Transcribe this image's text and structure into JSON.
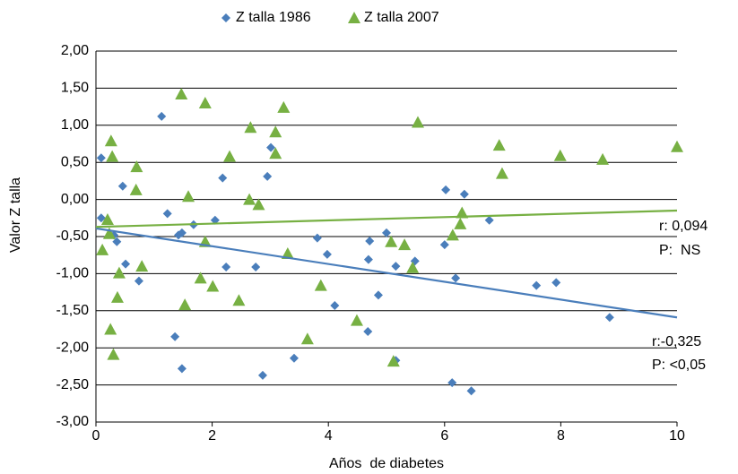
{
  "chart_data": {
    "type": "scatter",
    "x_label": "Años  de diabetes",
    "y_label": "Valor Z talla",
    "xlim": [
      0,
      10
    ],
    "xticks": [
      0,
      2,
      4,
      6,
      8,
      10
    ],
    "ylim": [
      -3,
      2
    ],
    "yticks": [
      {
        "value": -3,
        "label": "-3,00"
      },
      {
        "value": -2.5,
        "label": "-2,50"
      },
      {
        "value": -2,
        "label": "-2,00"
      },
      {
        "value": -1.5,
        "label": "-1,50"
      },
      {
        "value": -1,
        "label": "-1,00"
      },
      {
        "value": -0.5,
        "label": "-0,50"
      },
      {
        "value": 0,
        "label": "0,00"
      },
      {
        "value": 0.5,
        "label": "0,50"
      },
      {
        "value": 1,
        "label": "1,00"
      },
      {
        "value": 1.5,
        "label": "1,50"
      },
      {
        "value": 2,
        "label": "2,00"
      }
    ],
    "grid": true,
    "series": [
      {
        "name": "Z talla 1986",
        "color": "#4a7ebb",
        "marker": "diamond",
        "x": [
          0.09,
          0.09,
          0.31,
          0.36,
          0.46,
          0.51,
          0.74,
          1.13,
          1.23,
          1.36,
          1.42,
          1.48,
          1.48,
          1.68,
          2.05,
          2.18,
          2.24,
          2.75,
          2.87,
          2.95,
          3.01,
          3.41,
          3.81,
          3.98,
          4.11,
          4.68,
          4.69,
          4.71,
          4.86,
          5.0,
          5.16,
          5.16,
          5.49,
          6.02,
          6.0,
          6.13,
          6.19,
          6.34,
          6.46,
          6.77,
          7.58,
          7.92,
          8.84
        ],
        "values": [
          0.56,
          -0.25,
          -0.48,
          -0.57,
          0.18,
          -0.87,
          -1.1,
          1.12,
          -0.19,
          -1.85,
          -0.48,
          -0.45,
          -2.28,
          -0.34,
          -0.28,
          0.29,
          -0.91,
          -0.91,
          -2.37,
          0.31,
          0.7,
          -2.14,
          -0.52,
          -0.74,
          -1.43,
          -1.78,
          -0.81,
          -0.56,
          -1.29,
          -0.45,
          -0.9,
          -2.17,
          -0.83,
          0.13,
          -0.61,
          -2.47,
          -1.06,
          0.07,
          -2.58,
          -0.28,
          -1.16,
          -1.12,
          -1.59
        ],
        "trendline": {
          "x": [
            0,
            10
          ],
          "values": [
            -0.39,
            -1.59
          ]
        }
      },
      {
        "name": "Z talla 2007",
        "color": "#77b043",
        "marker": "triangle",
        "x": [
          0.11,
          0.2,
          0.23,
          0.26,
          0.28,
          0.25,
          0.3,
          0.37,
          0.4,
          0.69,
          0.7,
          0.79,
          1.47,
          1.53,
          1.59,
          1.8,
          1.88,
          1.88,
          2.01,
          2.3,
          2.46,
          2.66,
          2.64,
          2.8,
          3.09,
          3.09,
          3.23,
          3.3,
          3.64,
          3.87,
          4.49,
          5.08,
          5.12,
          5.31,
          5.45,
          5.54,
          6.14,
          6.27,
          6.3,
          6.94,
          6.99,
          7.99,
          8.72,
          10.0
        ],
        "values": [
          -0.68,
          -0.27,
          -0.46,
          0.79,
          0.58,
          -1.75,
          -2.09,
          -1.32,
          -0.99,
          0.13,
          0.44,
          -0.9,
          1.42,
          -1.42,
          0.04,
          -1.06,
          1.3,
          -0.57,
          -1.17,
          0.58,
          -1.36,
          0.97,
          0.0,
          -0.07,
          0.91,
          0.62,
          1.24,
          -0.73,
          -1.88,
          -1.16,
          -1.63,
          -0.57,
          -2.18,
          -0.61,
          -0.92,
          1.04,
          -0.48,
          -0.33,
          -0.18,
          0.73,
          0.35,
          0.59,
          0.54,
          0.71
        ],
        "trendline": {
          "x": [
            0,
            10
          ],
          "values": [
            -0.37,
            -0.15
          ]
        }
      }
    ],
    "annotations": [
      "r: 0,094",
      "P:  NS",
      "r:-0,325",
      "P: <0,05"
    ],
    "legend_position": "top"
  }
}
